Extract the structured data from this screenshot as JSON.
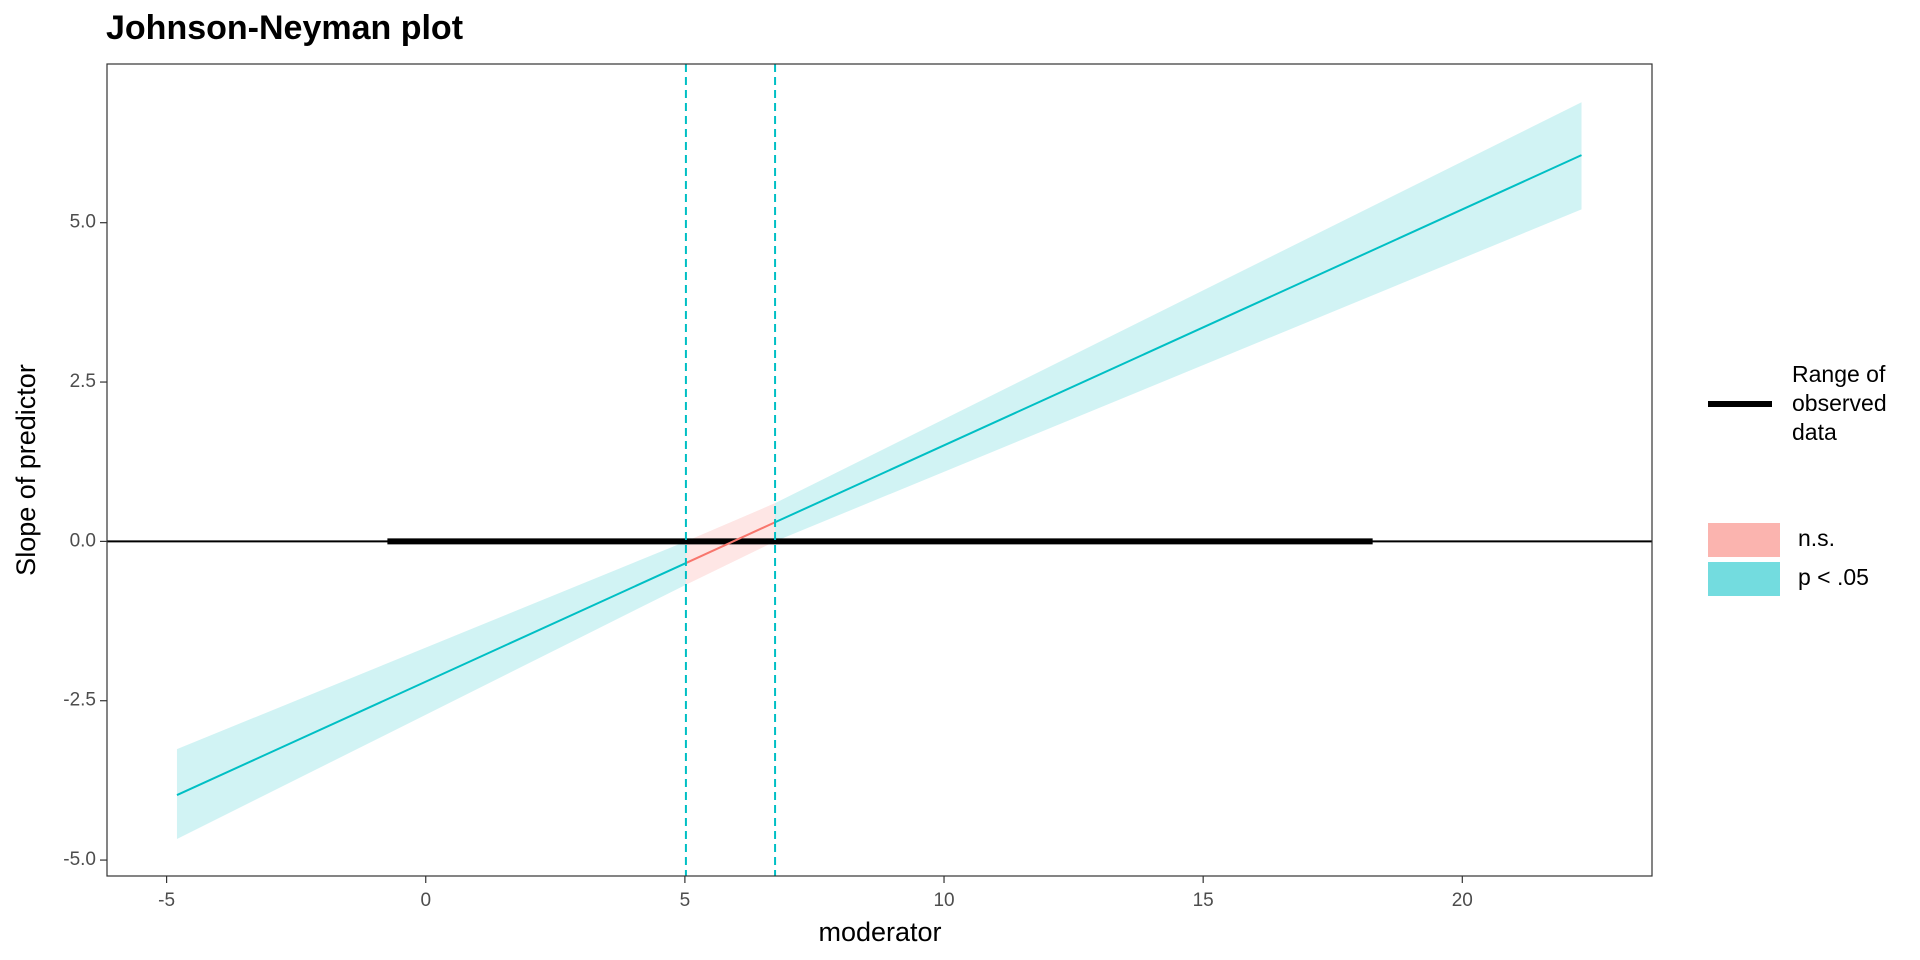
{
  "chart_data": {
    "type": "line",
    "title": "Johnson-Neyman plot",
    "x_label": "moderator",
    "y_label": "Slope of predictor",
    "xlim": [
      -6.15,
      23.66
    ],
    "ylim": [
      -5.25,
      7.49
    ],
    "xticks": [
      -5,
      0,
      5,
      10,
      15,
      20
    ],
    "yticks": [
      {
        "value": -5,
        "label": "-5.0"
      },
      {
        "value": -2.5,
        "label": "-2.5"
      },
      {
        "value": 0,
        "label": "0.0"
      },
      {
        "value": 2.5,
        "label": "2.5"
      },
      {
        "value": 5,
        "label": "5.0"
      }
    ],
    "hline": 0,
    "jn_points": [
      5.02,
      6.74
    ],
    "jn_color": "#00BFC4",
    "observed_range": {
      "label": [
        "Range of",
        "observed",
        "data"
      ],
      "x": [
        -0.74,
        18.27
      ],
      "color": "#000000"
    },
    "series": [
      {
        "name": "n.s.",
        "color": "#F8766D",
        "x": [
          5.02,
          6.74
        ],
        "values": [
          -0.34,
          0.3
        ],
        "lower": [
          -0.68,
          0
        ],
        "upper": [
          0,
          0.6
        ]
      },
      {
        "name": "p < .05",
        "color": "#00BFC4",
        "x": [
          -4.8,
          5.02,
          null,
          6.74,
          22.3
        ],
        "values": [
          -3.98,
          -0.34,
          null,
          0.3,
          6.06
        ],
        "lower": [
          -4.67,
          -0.68,
          null,
          0,
          5.21
        ],
        "upper": [
          -3.26,
          0,
          null,
          0.6,
          6.89
        ]
      }
    ]
  }
}
